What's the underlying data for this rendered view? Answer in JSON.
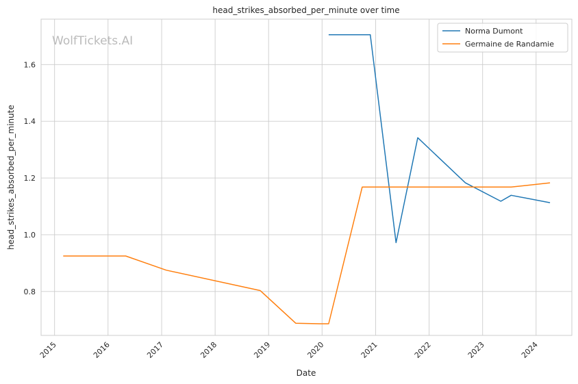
{
  "colors": {
    "norma": "#1f77b4",
    "germaine": "#ff7f0e",
    "grid": "#cccccc",
    "watermark": "#bbbbbb"
  },
  "watermark": "WolfTickets.AI",
  "chart_data": {
    "type": "line",
    "title": "head_strikes_absorbed_per_minute over time",
    "xlabel": "Date",
    "ylabel": "head_strikes_absorbed_per_minute",
    "x_axis_type": "date",
    "xlim": [
      "2014-10-01",
      "2024-09-01"
    ],
    "ylim": [
      0.645,
      1.76
    ],
    "x_ticks": [
      "2015",
      "2016",
      "2017",
      "2018",
      "2019",
      "2020",
      "2021",
      "2022",
      "2023",
      "2024"
    ],
    "y_ticks": [
      "0.8",
      "1.0",
      "1.2",
      "1.4",
      "1.6"
    ],
    "grid": true,
    "legend_position": "top-right",
    "series": [
      {
        "name": "Norma Dumont",
        "color": "#1f77b4",
        "points": [
          [
            "2020-02-15",
            1.705
          ],
          [
            "2020-11-25",
            1.705
          ],
          [
            "2021-05-20",
            0.972
          ],
          [
            "2021-10-15",
            1.342
          ],
          [
            "2022-04-25",
            1.248
          ],
          [
            "2022-09-05",
            1.183
          ],
          [
            "2023-05-05",
            1.118
          ],
          [
            "2023-07-15",
            1.139
          ],
          [
            "2024-04-05",
            1.113
          ]
        ]
      },
      {
        "name": "Germaine de Randamie",
        "color": "#ff7f0e",
        "points": [
          [
            "2015-03-01",
            0.925
          ],
          [
            "2016-05-01",
            0.925
          ],
          [
            "2017-02-01",
            0.875
          ],
          [
            "2018-11-05",
            0.803
          ],
          [
            "2019-07-05",
            0.688
          ],
          [
            "2019-12-15",
            0.686
          ],
          [
            "2020-02-15",
            0.686
          ],
          [
            "2020-10-01",
            1.168
          ],
          [
            "2023-07-15",
            1.168
          ],
          [
            "2024-04-05",
            1.183
          ]
        ]
      }
    ]
  }
}
